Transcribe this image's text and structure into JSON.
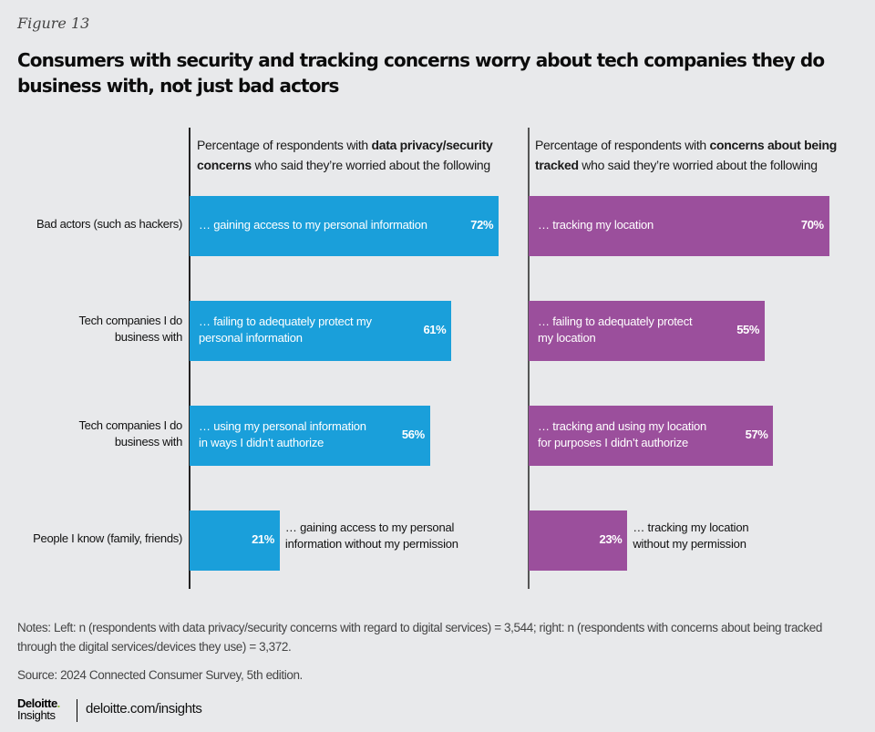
{
  "figure_label": "Figure 13",
  "title": "Consumers with security and tracking concerns worry about tech companies they do business with, not just bad actors",
  "chart_data": {
    "type": "bar",
    "orientation": "horizontal",
    "title": "Consumers with security and tracking concerns worry about tech companies they do business with, not just bad actors",
    "categories": [
      "Bad actors (such as hackers)",
      "Tech companies I do business with",
      "Tech companies I do business with",
      "People I know (family, friends)"
    ],
    "xlim": [
      0,
      100
    ],
    "grid": false,
    "panels": [
      {
        "name": "data privacy/security concerns",
        "heading_pre": "Percentage of respondents with ",
        "heading_bold": "data privacy/security concerns",
        "heading_post": " who said they’re worried about the following",
        "color": "#1a9fda",
        "items": [
          {
            "label": "… gaining access to my personal information",
            "value": 72,
            "display": "72%"
          },
          {
            "label": "… failing to adequately protect my personal information",
            "value": 61,
            "display": "61%"
          },
          {
            "label": "… using my personal information in ways I didn’t authorize",
            "value": 56,
            "display": "56%"
          },
          {
            "label": "… gaining access to my personal information without my permission",
            "value": 21,
            "display": "21%"
          }
        ]
      },
      {
        "name": "concerns about being tracked",
        "heading_pre": "Percentage of respondents with ",
        "heading_bold": "concerns about being tracked",
        "heading_post": " who said they’re worried about the following",
        "color": "#9b4f9c",
        "items": [
          {
            "label": "… tracking my location",
            "value": 70,
            "display": "70%"
          },
          {
            "label": "… failing to adequately protect my location",
            "value": 55,
            "display": "55%"
          },
          {
            "label": "… tracking and using my location for purposes I didn’t authorize",
            "value": 57,
            "display": "57%"
          },
          {
            "label": "… tracking my location without  my permission",
            "value": 23,
            "display": "23%"
          }
        ]
      }
    ]
  },
  "categories_display": [
    [
      "Bad actors (such as hackers)"
    ],
    [
      "Tech companies I do",
      "business with"
    ],
    [
      "Tech companies I do",
      "business with"
    ],
    [
      "People I know (family, friends)"
    ]
  ],
  "bar_lines": [
    [
      [
        "… gaining access to my personal information"
      ],
      [
        "… failing to adequately protect my",
        "personal information"
      ],
      [
        "… using my personal information",
        "in ways I didn’t authorize"
      ],
      [
        "… gaining access to my personal",
        "information without my permission"
      ]
    ],
    [
      [
        "… tracking my location"
      ],
      [
        "… failing to adequately protect",
        "my location"
      ],
      [
        "… tracking and using my location",
        "for purposes I didn’t authorize"
      ],
      [
        "… tracking my location",
        "without  my permission"
      ]
    ]
  ],
  "notes": "Notes: Left: n (respondents with data privacy/security concerns with regard to digital services) = 3,544; right: n (respondents with concerns about being tracked through the digital services/devices they use) = 3,372.",
  "source": "Source: 2024 Connected Consumer Survey, 5th edition.",
  "footer": {
    "logo_top": "Deloitte",
    "logo_dot": ".",
    "logo_bottom": "Insights",
    "url": "deloitte.com/insights"
  }
}
